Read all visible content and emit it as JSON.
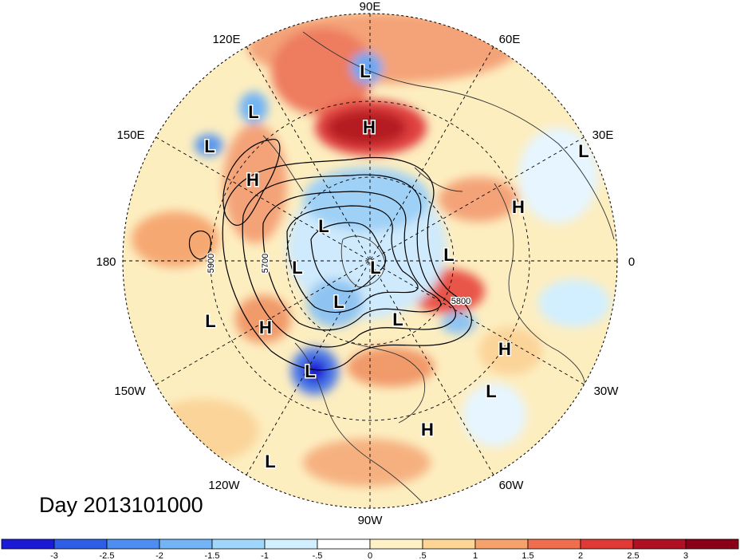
{
  "title": "Day 2013101000",
  "longitude_labels": [
    "90E",
    "60E",
    "30E",
    "0",
    "30W",
    "60W",
    "90W",
    "120W",
    "150W",
    "180",
    "150E",
    "120E"
  ],
  "contour_labels": [
    "5900",
    "5700",
    "5800"
  ],
  "pressure_centers": [
    {
      "type": "L"
    },
    {
      "type": "L"
    },
    {
      "type": "H"
    },
    {
      "type": "L"
    },
    {
      "type": "H"
    },
    {
      "type": "H"
    },
    {
      "type": "L"
    },
    {
      "type": "L"
    },
    {
      "type": "L"
    },
    {
      "type": "L"
    },
    {
      "type": "L"
    },
    {
      "type": "L"
    },
    {
      "type": "L"
    },
    {
      "type": "H"
    },
    {
      "type": "L"
    },
    {
      "type": "H"
    },
    {
      "type": "L"
    },
    {
      "type": "L"
    },
    {
      "type": "H"
    },
    {
      "type": "L"
    }
  ],
  "colorbar": {
    "tick_labels": [
      "-3",
      "-2.5",
      "-2",
      "-1.5",
      "-1",
      "-.5",
      "0",
      ".5",
      "1",
      "1.5",
      "2",
      "2.5",
      "3"
    ],
    "colors": [
      "#1a1ad6",
      "#2f5ee6",
      "#4d8ef0",
      "#72b4f5",
      "#9fd6fa",
      "#d2efff",
      "#ffffff",
      "#fff2c6",
      "#fdd595",
      "#f6a26c",
      "#ee6e4e",
      "#e03a36",
      "#b01024",
      "#8a0018"
    ]
  }
}
